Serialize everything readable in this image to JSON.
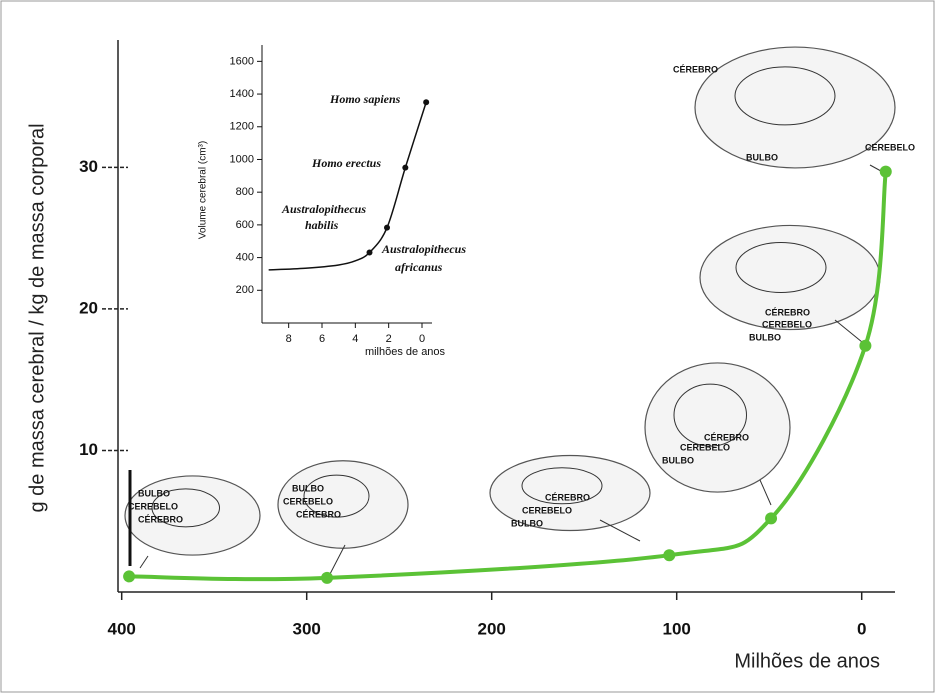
{
  "chart_data": [
    {
      "type": "line",
      "y_label": "g de massa cerebral / kg de massa corporal",
      "x_label": "Milhões de anos",
      "x": [
        396,
        289,
        104,
        49,
        -2,
        -13
      ],
      "y": [
        1.1,
        1.0,
        2.6,
        5.2,
        17.4,
        29.7
      ],
      "color": "#5bc236",
      "xlim": [
        402,
        -18
      ],
      "ylim": [
        0,
        39
      ],
      "xticks": [
        400,
        300,
        200,
        100,
        0
      ],
      "yticks": [
        10,
        20,
        30
      ],
      "illustrations": [
        {
          "labels": [
            "BULBO",
            "CEREBELO",
            "CÉREBRO"
          ]
        },
        {
          "labels": [
            "BULBO",
            "CEREBELO",
            "CÉREBRO"
          ]
        },
        {
          "labels": [
            "CÉREBRO",
            "CEREBELO",
            "BULBO"
          ]
        },
        {
          "labels": [
            "CÉREBRO",
            "CEREBELO",
            "BULBO"
          ]
        },
        {
          "labels": [
            "CÉREBRO",
            "CEREBELO",
            "BULBO"
          ]
        },
        {
          "labels": [
            "CÉREBRO",
            "BULBO",
            "CEREBELO"
          ]
        }
      ]
    },
    {
      "type": "line",
      "y_label": "Volume cerebral (cm³)",
      "x_label": "milhões de anos",
      "x": [
        9.2,
        7,
        5,
        4,
        3.15,
        2.1,
        1.0,
        -0.25
      ],
      "y": [
        325,
        335,
        355,
        380,
        431,
        583,
        950,
        1350
      ],
      "color": "#111111",
      "xlim": [
        9.6,
        -0.6
      ],
      "ylim": [
        0,
        1700
      ],
      "xticks": [
        8,
        6,
        4,
        2,
        0
      ],
      "yticks": [
        200,
        400,
        600,
        800,
        1000,
        1200,
        1400,
        1600
      ],
      "points": [
        {
          "label": [
            "Homo sapiens"
          ],
          "x": -0.25,
          "y": 1350
        },
        {
          "label": [
            "Homo erectus"
          ],
          "x": 1.0,
          "y": 950
        },
        {
          "label": [
            "Australopithecus",
            "habilis"
          ],
          "x": 2.1,
          "y": 583
        },
        {
          "label": [
            "Australopithecus",
            "africanus"
          ],
          "x": 3.15,
          "y": 431
        }
      ]
    }
  ]
}
